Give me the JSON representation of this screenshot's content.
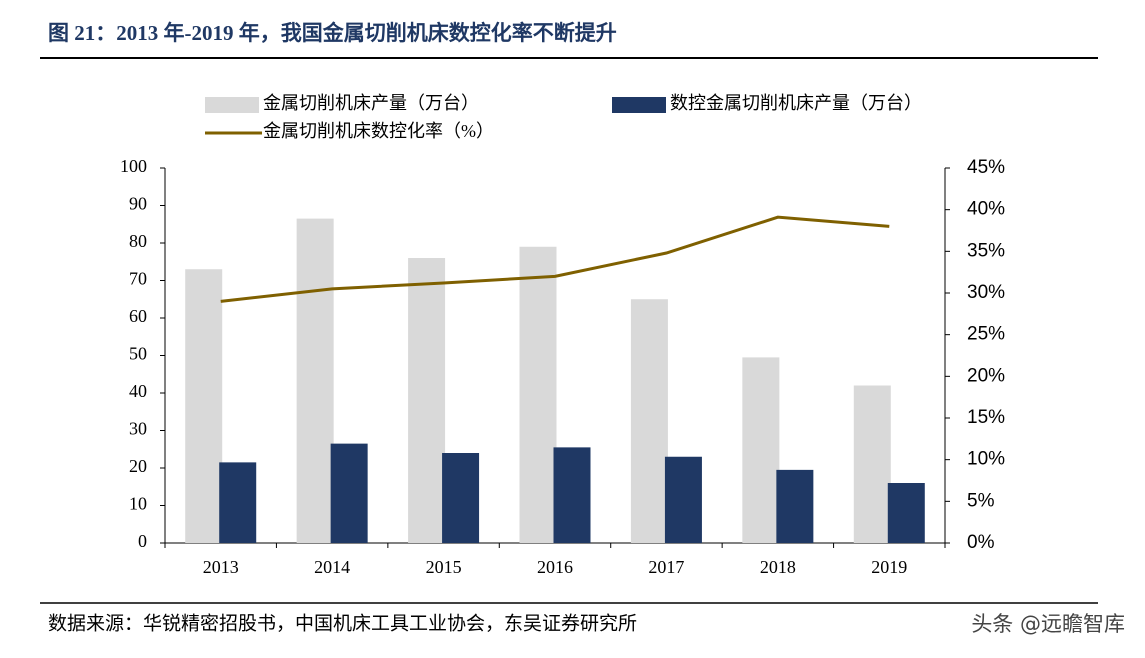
{
  "header": {
    "title": "图 21：2013 年-2019 年，我国金属切削机床数控化率不断提升"
  },
  "chart_data": {
    "type": "bar",
    "categories": [
      "2013",
      "2014",
      "2015",
      "2016",
      "2017",
      "2018",
      "2019"
    ],
    "series": [
      {
        "name": "金属切削机床产量（万台）",
        "type": "bar",
        "color": "#d9d9d9",
        "values": [
          73,
          86.5,
          76,
          79,
          65,
          49.5,
          42
        ]
      },
      {
        "name": "数控金属切削机床产量（万台）",
        "type": "bar",
        "color": "#1f3864",
        "values": [
          21.5,
          26.5,
          24,
          25.5,
          23,
          19.5,
          16
        ]
      },
      {
        "name": "金属切削机床数控化率（%）",
        "type": "line",
        "axis": "y2",
        "color": "#7f6000",
        "values": [
          29,
          30.5,
          31.2,
          32,
          34.8,
          39.1,
          38
        ]
      }
    ],
    "ylim": [
      0,
      100
    ],
    "yticks": [
      0,
      10,
      20,
      30,
      40,
      50,
      60,
      70,
      80,
      90,
      100
    ],
    "y2lim": [
      0,
      45
    ],
    "y2ticks": [
      {
        "value": 0,
        "label": "0%"
      },
      {
        "value": 5,
        "label": "5%"
      },
      {
        "value": 10,
        "label": "10%"
      },
      {
        "value": 15,
        "label": "15%"
      },
      {
        "value": 20,
        "label": "20%"
      },
      {
        "value": 25,
        "label": "25%"
      },
      {
        "value": 30,
        "label": "30%"
      },
      {
        "value": 35,
        "label": "35%"
      },
      {
        "value": 40,
        "label": "40%"
      },
      {
        "value": 45,
        "label": "45%"
      }
    ],
    "grid": false
  },
  "source": "数据来源：华锐精密招股书，中国机床工具工业协会，东吴证券研究所",
  "watermark": "头条 @远瞻智库"
}
